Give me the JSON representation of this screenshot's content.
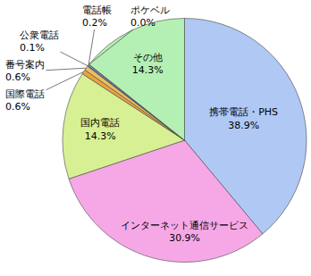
{
  "chart_data": {
    "type": "pie",
    "categories": [
      "携帯電話・PHS",
      "インターネット通信サービス",
      "国内電話",
      "国際電話",
      "番号案内",
      "公衆電話",
      "電話帳",
      "ポケベル",
      "その他"
    ],
    "values": [
      38.9,
      30.9,
      14.3,
      0.6,
      0.6,
      0.1,
      0.2,
      0.0,
      14.3
    ],
    "value_labels": [
      "38.9%",
      "30.9%",
      "14.3%",
      "0.6%",
      "0.6%",
      "0.1%",
      "0.2%",
      "0.0%",
      "14.3%"
    ],
    "colors": [
      "#b0c8f4",
      "#f6a8e6",
      "#d8f094",
      "#f0a040",
      "#e8c060",
      "#90b0e0",
      "#8890d0",
      "#c8c8c8",
      "#b4f0b4"
    ],
    "data_labels": true
  }
}
